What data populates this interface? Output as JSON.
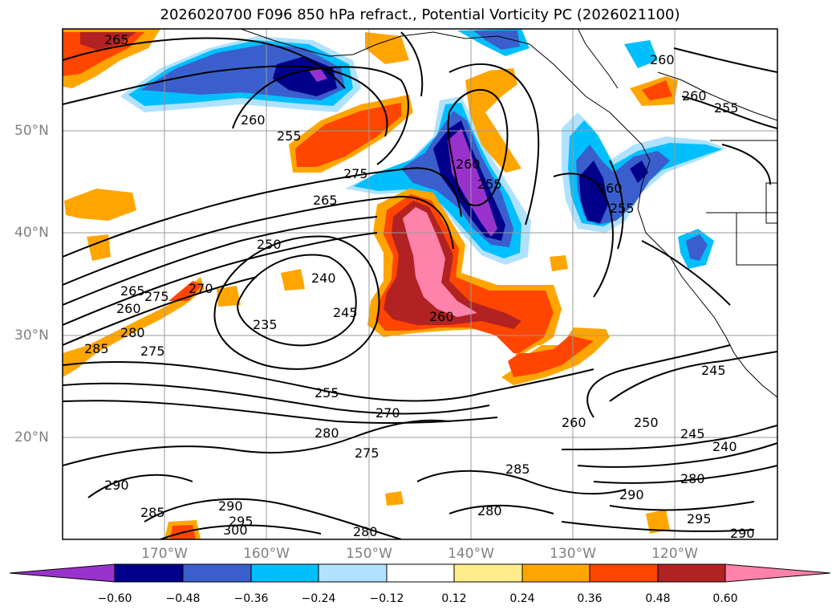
{
  "title": "2026020700 F096 850 hPa refract., Potential Vorticity PC (2026021100)",
  "lat_labels": [
    "50°N",
    "40°N",
    "30°N",
    "20°N"
  ],
  "lon_labels": [
    "170°W",
    "160°W",
    "150°W",
    "140°W",
    "130°W",
    "120°W"
  ],
  "colorbar": {
    "colors": [
      "#9932cc",
      "#00008b",
      "#3a5fcd",
      "#00bfff",
      "#b0e2ff",
      "#ffffff",
      "#ffec8b",
      "#ffa500",
      "#ff4500",
      "#b22222",
      "#ff82ab"
    ],
    "tick_labels": [
      "−0.60",
      "−0.48",
      "−0.36",
      "−0.24",
      "−0.12",
      "0.12",
      "0.24",
      "0.36",
      "0.48",
      "0.60"
    ]
  },
  "contour_labels": [
    "265",
    "260",
    "260",
    "255",
    "255",
    "260",
    "255",
    "260",
    "275",
    "265",
    "250",
    "240",
    "235",
    "245",
    "260",
    "270",
    "265",
    "275",
    "260",
    "280",
    "275",
    "285",
    "255",
    "270",
    "280",
    "275",
    "290",
    "285",
    "290",
    "280",
    "280",
    "295",
    "300",
    "260",
    "250",
    "245",
    "240",
    "280",
    "285",
    "290",
    "295",
    "290",
    "245",
    "255",
    "260"
  ]
}
